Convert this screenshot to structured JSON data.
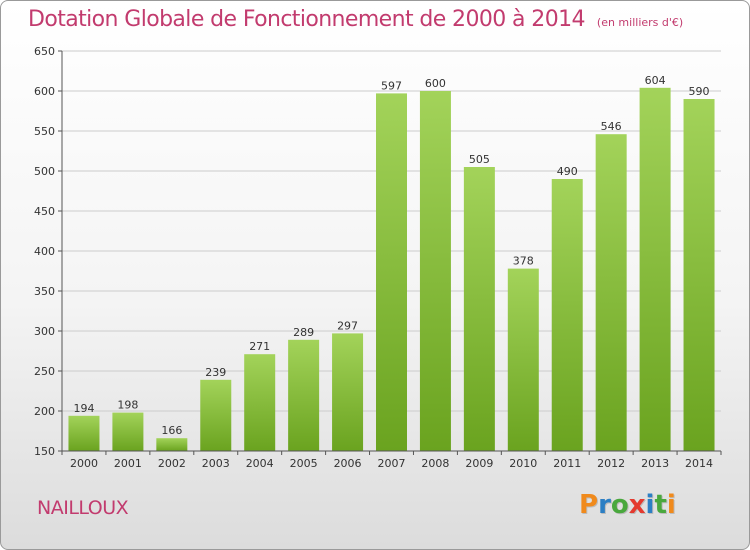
{
  "title": "Dotation Globale de Fonctionnement de 2000 à 2014",
  "subtitle": "(en milliers d'€)",
  "commune": "NAILLOUX",
  "logo": {
    "letters": [
      "P",
      "r",
      "o",
      "x",
      "i",
      "t",
      "i"
    ]
  },
  "colors": {
    "title": "#c23b6e",
    "bar_light": "#a3d35a",
    "bar_dark": "#6aa31f",
    "grid": "#cccccc"
  },
  "chart_data": {
    "type": "bar",
    "title": "Dotation Globale de Fonctionnement de 2000 à 2014",
    "subtitle": "(en milliers d'€)",
    "xlabel": "",
    "ylabel": "",
    "categories": [
      "2000",
      "2001",
      "2002",
      "2003",
      "2004",
      "2005",
      "2006",
      "2007",
      "2008",
      "2009",
      "2010",
      "2011",
      "2012",
      "2013",
      "2014"
    ],
    "values": [
      194,
      198,
      166,
      239,
      271,
      289,
      297,
      597,
      600,
      505,
      378,
      490,
      546,
      604,
      590
    ],
    "ylim": [
      150,
      650
    ],
    "yticks": [
      150,
      200,
      250,
      300,
      350,
      400,
      450,
      500,
      550,
      600,
      650
    ],
    "grid": true,
    "legend": "none"
  }
}
